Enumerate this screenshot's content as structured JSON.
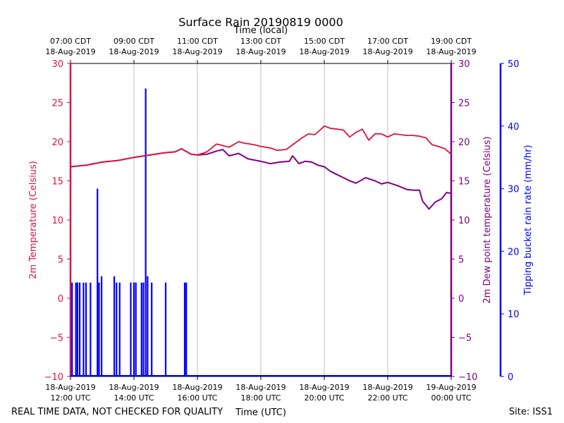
{
  "chart_data": {
    "type": "line",
    "title": "Surface Rain 20190819 0000",
    "top_axis_label": "Time (local)",
    "bottom_axis_label": "Time (UTC)",
    "left_axis_label": "2m Temperature (Celsius)",
    "right_axis_label": "2m Dew point temperature (Celsius)",
    "far_right_axis_label": "Tipping bucket rain rate (mm/hr)",
    "footer_left": "REAL TIME DATA, NOT CHECKED FOR QUALITY",
    "footer_right": "Site: ISS1",
    "x_range_hours_utc": [
      12,
      24
    ],
    "temp_ylim": [
      -10,
      30
    ],
    "dew_ylim": [
      -10,
      30
    ],
    "rain_ylim": [
      0,
      50
    ],
    "temp_ticks": [
      "30",
      "25",
      "20",
      "15",
      "10",
      "5",
      "0",
      "−5",
      "−10"
    ],
    "dew_ticks": [
      "30",
      "25",
      "20",
      "15",
      "10",
      "5",
      "0",
      "−5",
      "−10"
    ],
    "rain_ticks": [
      "50",
      "40",
      "30",
      "20",
      "10",
      "0"
    ],
    "bottom_ticks": [
      {
        "line1": "18-Aug-2019",
        "line2": "12:00 UTC"
      },
      {
        "line1": "18-Aug-2019",
        "line2": "14:00 UTC"
      },
      {
        "line1": "18-Aug-2019",
        "line2": "16:00 UTC"
      },
      {
        "line1": "18-Aug-2019",
        "line2": "18:00 UTC"
      },
      {
        "line1": "18-Aug-2019",
        "line2": "20:00 UTC"
      },
      {
        "line1": "18-Aug-2019",
        "line2": "22:00 UTC"
      },
      {
        "line1": "19-Aug-2019",
        "line2": "00:00 UTC"
      }
    ],
    "top_ticks": [
      {
        "line1": "07:00 CDT",
        "line2": "18-Aug-2019"
      },
      {
        "line1": "09:00 CDT",
        "line2": "18-Aug-2019"
      },
      {
        "line1": "11:00 CDT",
        "line2": "18-Aug-2019"
      },
      {
        "line1": "13:00 CDT",
        "line2": "18-Aug-2019"
      },
      {
        "line1": "15:00 CDT",
        "line2": "18-Aug-2019"
      },
      {
        "line1": "17:00 CDT",
        "line2": "18-Aug-2019"
      },
      {
        "line1": "19:00 CDT",
        "line2": "18-Aug-2019"
      }
    ],
    "series": [
      {
        "name": "2m Temperature",
        "color": "#dc143c",
        "x": [
          12.0,
          12.5,
          13.0,
          13.5,
          14.0,
          14.5,
          15.0,
          15.3,
          15.5,
          15.8,
          16.0,
          16.3,
          16.6,
          17.0,
          17.3,
          17.5,
          17.8,
          18.0,
          18.3,
          18.5,
          18.8,
          19.0,
          19.3,
          19.5,
          19.7,
          19.9,
          20.0,
          20.2,
          20.4,
          20.6,
          20.8,
          21.0,
          21.2,
          21.4,
          21.6,
          21.8,
          22.0,
          22.2,
          22.4,
          22.6,
          22.8,
          23.0,
          23.2,
          23.4,
          23.6,
          23.8,
          24.0
        ],
        "values": [
          16.8,
          17.0,
          17.4,
          17.6,
          18.0,
          18.3,
          18.6,
          18.7,
          19.1,
          18.4,
          18.3,
          18.7,
          19.7,
          19.3,
          20.0,
          19.8,
          19.6,
          19.4,
          19.2,
          18.9,
          19.0,
          19.6,
          20.5,
          21.0,
          20.9,
          21.6,
          22.0,
          21.7,
          21.6,
          21.5,
          20.6,
          21.2,
          21.6,
          20.2,
          21.0,
          21.0,
          20.6,
          21.0,
          20.9,
          20.8,
          20.8,
          20.7,
          20.5,
          19.6,
          19.4,
          19.1,
          18.4
        ]
      },
      {
        "name": "2m Dew point temperature",
        "color": "#800080",
        "x": [
          12.0,
          12.5,
          13.0,
          13.5,
          14.0,
          14.5,
          15.0,
          15.3,
          15.5,
          15.8,
          16.0,
          16.3,
          16.6,
          16.8,
          17.0,
          17.3,
          17.6,
          18.0,
          18.3,
          18.6,
          18.9,
          19.0,
          19.2,
          19.4,
          19.6,
          19.8,
          20.0,
          20.2,
          20.5,
          20.8,
          21.0,
          21.3,
          21.6,
          21.8,
          22.0,
          22.3,
          22.6,
          22.8,
          23.0,
          23.1,
          23.3,
          23.5,
          23.7,
          23.85,
          24.0
        ],
        "values": [
          16.8,
          17.0,
          17.4,
          17.6,
          18.0,
          18.3,
          18.6,
          18.7,
          19.1,
          18.4,
          18.3,
          18.4,
          18.8,
          19.0,
          18.2,
          18.5,
          17.8,
          17.5,
          17.2,
          17.4,
          17.5,
          18.2,
          17.2,
          17.5,
          17.4,
          17.0,
          16.8,
          16.2,
          15.6,
          15.0,
          14.7,
          15.4,
          15.0,
          14.6,
          14.8,
          14.4,
          13.9,
          13.8,
          13.8,
          12.4,
          11.4,
          12.3,
          12.7,
          13.5,
          13.4
        ]
      },
      {
        "name": "Tipping bucket rain rate",
        "color": "#0000ff",
        "x": [
          12.05,
          12.17,
          12.22,
          12.29,
          12.41,
          12.49,
          12.63,
          12.85,
          12.9,
          12.98,
          13.38,
          13.45,
          13.55,
          13.9,
          14.0,
          14.06,
          14.24,
          14.3,
          14.37,
          14.43,
          14.56,
          15.0,
          15.6,
          15.65
        ],
        "values": [
          15,
          15,
          15,
          15,
          15,
          15,
          15,
          30,
          15,
          16,
          16,
          15,
          15,
          15,
          15,
          15,
          15,
          15,
          46,
          16,
          15,
          15,
          15,
          15
        ]
      }
    ]
  }
}
